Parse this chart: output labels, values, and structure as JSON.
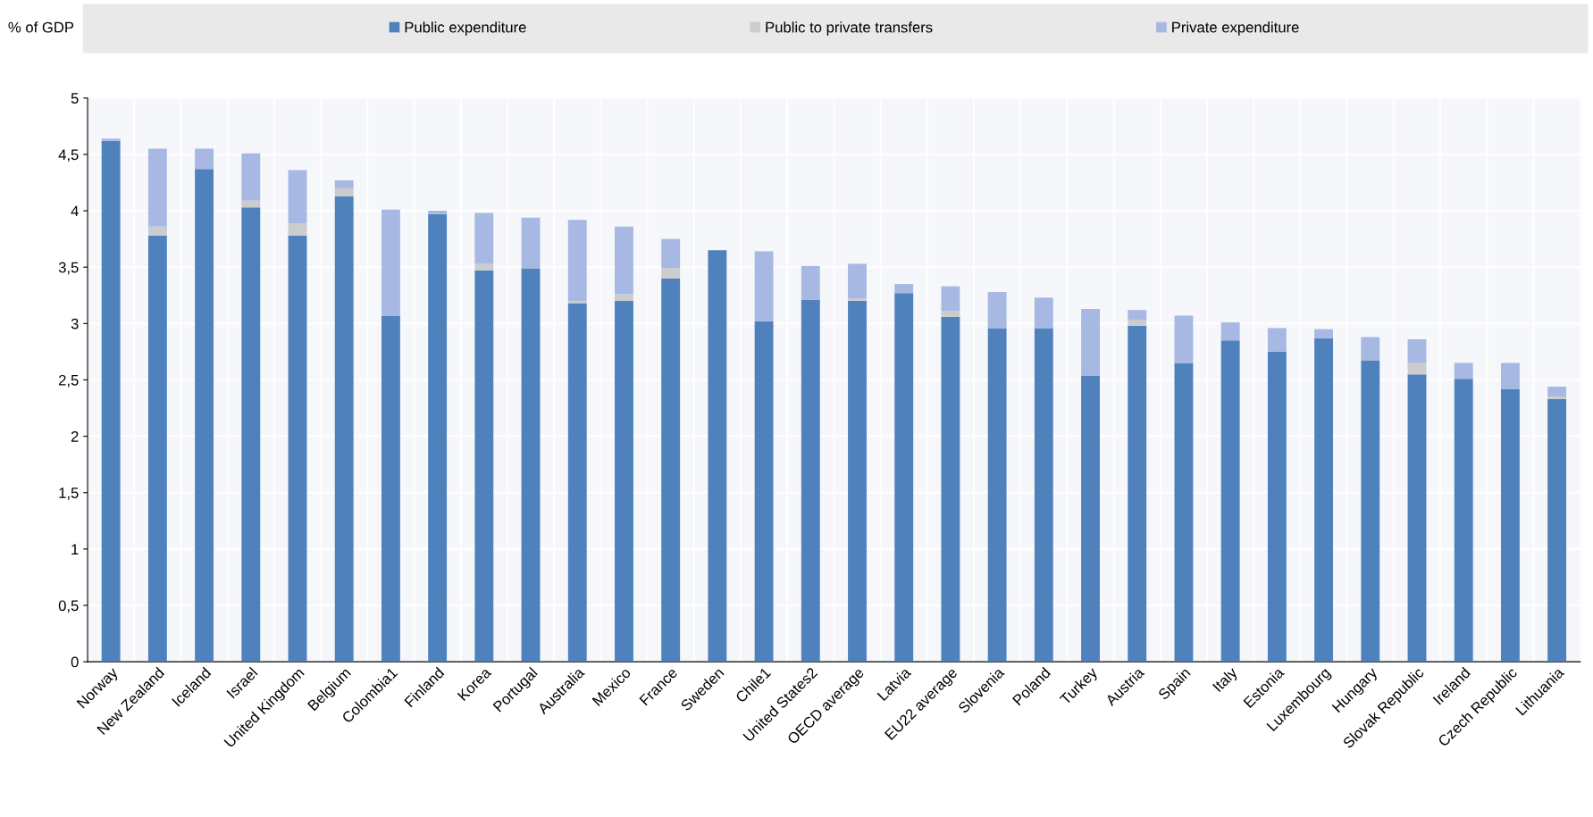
{
  "chart_data": {
    "type": "bar",
    "stacked": true,
    "ylabel": "% of GDP",
    "categories": [
      "Norway",
      "New Zealand",
      "Iceland",
      "Israel",
      "United Kingdom",
      "Belgium",
      "Colombia1",
      "Finland",
      "Korea",
      "Portugal",
      "Australia",
      "Mexico",
      "France",
      "Sweden",
      "Chile1",
      "United States2",
      "OECD average",
      "Latvia",
      "EU22 average",
      "Slovenia",
      "Poland",
      "Turkey",
      "Austria",
      "Spain",
      "Italy",
      "Estonia",
      "Luxembourg",
      "Hungary",
      "Slovak Republic",
      "Ireland",
      "Czech Republic",
      "Lithuania"
    ],
    "series": [
      {
        "name": "Public expenditure",
        "color": "#4f81bd",
        "values": [
          4.62,
          3.78,
          4.37,
          4.03,
          3.78,
          4.13,
          3.07,
          3.97,
          3.47,
          3.49,
          3.18,
          3.2,
          3.4,
          3.65,
          3.02,
          3.21,
          3.2,
          3.27,
          3.06,
          2.96,
          2.96,
          2.54,
          2.98,
          2.65,
          2.85,
          2.75,
          2.87,
          2.67,
          2.55,
          2.51,
          2.42,
          2.33
        ]
      },
      {
        "name": "Public to private transfers",
        "color": "#cccccc",
        "values": [
          0,
          0.08,
          0,
          0.06,
          0.11,
          0.07,
          0,
          0,
          0.06,
          0,
          0.02,
          0.06,
          0.09,
          0,
          0,
          0,
          0.02,
          0,
          0.05,
          0,
          0,
          0,
          0.05,
          0,
          0,
          0,
          0,
          0,
          0.1,
          0,
          0,
          0.02
        ]
      },
      {
        "name": "Private expenditure",
        "color": "#a7b8e3",
        "values": [
          0.02,
          0.69,
          0.18,
          0.42,
          0.47,
          0.07,
          0.94,
          0.03,
          0.45,
          0.45,
          0.72,
          0.6,
          0.26,
          0,
          0.62,
          0.3,
          0.31,
          0.08,
          0.22,
          0.32,
          0.27,
          0.59,
          0.09,
          0.42,
          0.16,
          0.21,
          0.08,
          0.21,
          0.21,
          0.14,
          0.23,
          0.09
        ]
      }
    ],
    "ylim": [
      0,
      5
    ],
    "yticks": [
      0,
      {
        "value": 0.5,
        "label": "0,5"
      },
      1,
      {
        "value": 1.5,
        "label": "1,5"
      },
      2,
      {
        "value": 2.5,
        "label": "2,5"
      },
      3,
      {
        "value": 3.5,
        "label": "3,5"
      },
      4,
      {
        "value": 4.5,
        "label": "4,5"
      },
      5
    ],
    "grid": true,
    "legend": "top"
  }
}
